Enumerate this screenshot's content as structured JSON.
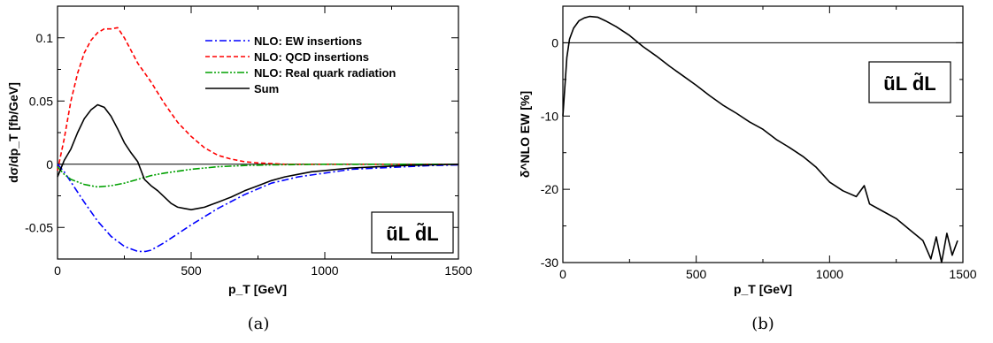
{
  "chart_data": [
    {
      "type": "line",
      "panel_caption": "(a)",
      "xlabel": "p_T [GeV]",
      "ylabel": "dσ/dp_T [fb/GeV]",
      "xlim": [
        0,
        1500
      ],
      "ylim": [
        -0.075,
        0.125
      ],
      "xticks": [
        0,
        500,
        1000,
        1500
      ],
      "yticks": [
        -0.05,
        0,
        0.05,
        0.1
      ],
      "xtick_labels": [
        "0",
        "500",
        "1000",
        "1500"
      ],
      "ytick_labels": [
        "-0.05",
        "0",
        "0.05",
        "0.1"
      ],
      "process_label": "ũL d̃L",
      "legend_position": "top-right",
      "series": [
        {
          "name": "NLO: EW insertions",
          "color": "#0000ff",
          "style": "dash-dot",
          "x": [
            0,
            25,
            50,
            100,
            150,
            200,
            250,
            300,
            330,
            350,
            400,
            450,
            500,
            600,
            700,
            800,
            900,
            1000,
            1100,
            1200,
            1300,
            1400,
            1500
          ],
          "y": [
            0,
            -0.006,
            -0.014,
            -0.03,
            -0.045,
            -0.057,
            -0.065,
            -0.069,
            -0.069,
            -0.068,
            -0.062,
            -0.055,
            -0.048,
            -0.035,
            -0.024,
            -0.015,
            -0.01,
            -0.007,
            -0.004,
            -0.003,
            -0.002,
            -0.001,
            -0.0005
          ]
        },
        {
          "name": "NLO: QCD insertions",
          "color": "#ff0000",
          "style": "dashed",
          "x": [
            0,
            25,
            50,
            75,
            100,
            125,
            150,
            175,
            200,
            225,
            250,
            275,
            300,
            350,
            400,
            450,
            500,
            550,
            600,
            650,
            700,
            750,
            800,
            850,
            900,
            1000,
            1500
          ],
          "y": [
            -0.005,
            0.02,
            0.05,
            0.072,
            0.088,
            0.098,
            0.104,
            0.107,
            0.107,
            0.108,
            0.1,
            0.09,
            0.08,
            0.065,
            0.048,
            0.033,
            0.022,
            0.013,
            0.007,
            0.004,
            0.002,
            0.001,
            0.0005,
            0,
            0,
            0,
            0
          ]
        },
        {
          "name": "NLO: Real quark radiation",
          "color": "#00a000",
          "style": "dash-dot-dot",
          "x": [
            0,
            25,
            50,
            100,
            150,
            200,
            250,
            300,
            350,
            400,
            500,
            600,
            700,
            800,
            1000,
            1200,
            1500
          ],
          "y": [
            -0.002,
            -0.008,
            -0.012,
            -0.016,
            -0.018,
            -0.017,
            -0.015,
            -0.012,
            -0.009,
            -0.007,
            -0.004,
            -0.002,
            -0.001,
            -0.0005,
            0,
            0,
            0
          ]
        },
        {
          "name": "Sum",
          "color": "#000000",
          "style": "solid",
          "x": [
            0,
            25,
            50,
            75,
            100,
            125,
            150,
            175,
            200,
            225,
            250,
            275,
            300,
            325,
            350,
            375,
            400,
            425,
            450,
            475,
            500,
            525,
            550,
            575,
            600,
            650,
            700,
            750,
            800,
            850,
            900,
            950,
            1000,
            1100,
            1200,
            1300,
            1400,
            1500
          ],
          "y": [
            -0.01,
            0.003,
            0.012,
            0.025,
            0.036,
            0.043,
            0.047,
            0.045,
            0.038,
            0.028,
            0.017,
            0.009,
            0.002,
            -0.012,
            -0.017,
            -0.021,
            -0.026,
            -0.031,
            -0.034,
            -0.035,
            -0.036,
            -0.035,
            -0.034,
            -0.032,
            -0.03,
            -0.026,
            -0.021,
            -0.017,
            -0.013,
            -0.01,
            -0.008,
            -0.006,
            -0.005,
            -0.003,
            -0.002,
            -0.001,
            -0.0005,
            0
          ]
        }
      ]
    },
    {
      "type": "line",
      "panel_caption": "(b)",
      "xlabel": "p_T [GeV]",
      "ylabel": "δ^NLO EW [%]",
      "xlim": [
        0,
        1500
      ],
      "ylim": [
        -30,
        5
      ],
      "xticks": [
        0,
        500,
        1000,
        1500
      ],
      "yticks": [
        -30,
        -20,
        -10,
        0
      ],
      "xtick_labels": [
        "0",
        "500",
        "1000",
        "1500"
      ],
      "ytick_labels": [
        "-30",
        "-20",
        "-10",
        "0"
      ],
      "process_label": "ũL d̃L",
      "series": [
        {
          "name": "",
          "color": "#000000",
          "style": "solid",
          "x": [
            0,
            15,
            25,
            40,
            60,
            80,
            100,
            130,
            160,
            200,
            250,
            300,
            350,
            400,
            450,
            500,
            550,
            600,
            650,
            700,
            750,
            800,
            850,
            900,
            950,
            1000,
            1050,
            1100,
            1130,
            1150,
            1200,
            1250,
            1300,
            1350,
            1380,
            1400,
            1420,
            1440,
            1460,
            1480
          ],
          "y": [
            -10,
            -2,
            0.5,
            2,
            3,
            3.4,
            3.6,
            3.5,
            3,
            2.2,
            1,
            -0.5,
            -1.8,
            -3.2,
            -4.5,
            -5.8,
            -7.2,
            -8.5,
            -9.6,
            -10.8,
            -11.8,
            -13.2,
            -14.3,
            -15.5,
            -17,
            -19,
            -20.2,
            -21,
            -19.5,
            -22,
            -23,
            -24,
            -25.5,
            -27,
            -29.5,
            -26.5,
            -30,
            -26,
            -29,
            -27
          ]
        }
      ]
    }
  ]
}
